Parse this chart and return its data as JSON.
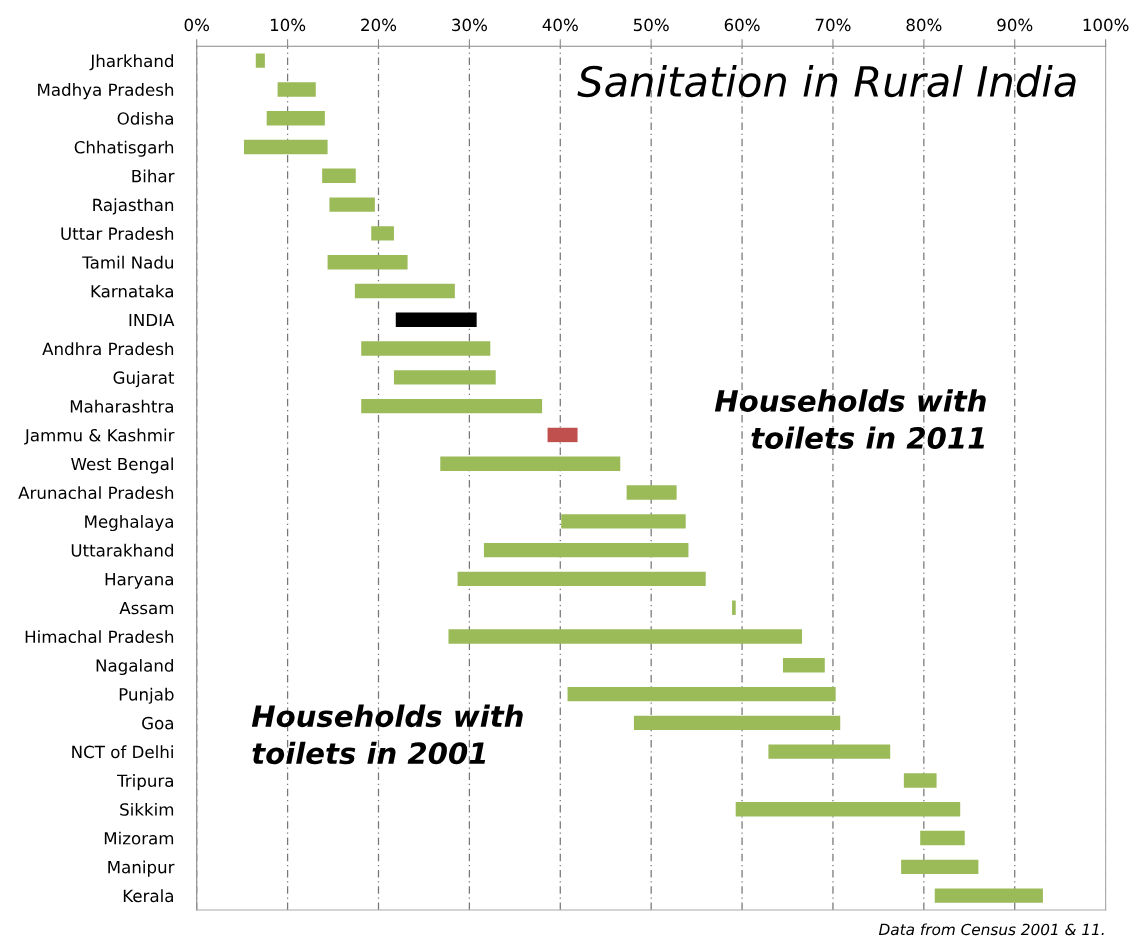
{
  "chart_data": {
    "type": "bar",
    "orientation": "horizontal",
    "title": "Sanitation in Rural India",
    "categories": [
      "Jharkhand",
      "Madhya Pradesh",
      "Odisha",
      "Chhatisgarh",
      "Bihar",
      "Rajasthan",
      "Uttar Pradesh",
      "Tamil Nadu",
      "Karnataka",
      "INDIA",
      "Andhra Pradesh",
      "Gujarat",
      "Maharashtra",
      "Jammu & Kashmir",
      "West Bengal",
      "Arunachal Pradesh",
      "Meghalaya",
      "Uttarakhand",
      "Haryana",
      "Assam",
      "Himachal Pradesh",
      "Nagaland",
      "Punjab",
      "Goa",
      "NCT of Delhi",
      "Tripura",
      "Sikkim",
      "Mizoram",
      "Manipur",
      "Kerala"
    ],
    "base": [
      6.5,
      8.9,
      7.7,
      5.2,
      13.8,
      14.6,
      19.2,
      14.4,
      17.4,
      21.9,
      18.1,
      21.7,
      18.1,
      38.6,
      26.8,
      47.3,
      40.1,
      31.6,
      28.7,
      58.9,
      27.7,
      64.5,
      40.8,
      48.1,
      62.9,
      77.8,
      59.3,
      79.6,
      77.5,
      81.2
    ],
    "values": [
      1.0,
      4.2,
      6.4,
      9.2,
      3.7,
      5.0,
      2.5,
      8.8,
      11.0,
      8.9,
      14.2,
      11.2,
      19.9,
      3.3,
      19.8,
      5.5,
      13.7,
      22.5,
      27.3,
      0.4,
      38.9,
      4.6,
      29.5,
      22.7,
      13.4,
      3.6,
      24.7,
      4.9,
      8.5,
      11.9
    ],
    "colors": [
      "#9bbb59",
      "#9bbb59",
      "#9bbb59",
      "#9bbb59",
      "#9bbb59",
      "#9bbb59",
      "#9bbb59",
      "#9bbb59",
      "#9bbb59",
      "#000000",
      "#9bbb59",
      "#9bbb59",
      "#9bbb59",
      "#c0504d",
      "#9bbb59",
      "#9bbb59",
      "#9bbb59",
      "#9bbb59",
      "#9bbb59",
      "#9bbb59",
      "#9bbb59",
      "#9bbb59",
      "#9bbb59",
      "#9bbb59",
      "#9bbb59",
      "#9bbb59",
      "#9bbb59",
      "#9bbb59",
      "#9bbb59",
      "#9bbb59"
    ],
    "xlim": [
      0,
      100
    ],
    "xticks": [
      {
        "value": 0,
        "label": "0%"
      },
      {
        "value": 10,
        "label": "10%"
      },
      {
        "value": 20,
        "label": "20%"
      },
      {
        "value": 30,
        "label": "30%"
      },
      {
        "value": 40,
        "label": "40%"
      },
      {
        "value": 50,
        "label": "50%"
      },
      {
        "value": 60,
        "label": "60%"
      },
      {
        "value": 70,
        "label": "70%"
      },
      {
        "value": 80,
        "label": "80%"
      },
      {
        "value": 90,
        "label": "90%"
      },
      {
        "value": 100,
        "label": "100%"
      }
    ],
    "grid": "x",
    "annotations": [
      "Households with\ntoilets in 2001",
      "Households with\ntoilets in 2011",
      "Data from Census 2001 & 11."
    ]
  }
}
